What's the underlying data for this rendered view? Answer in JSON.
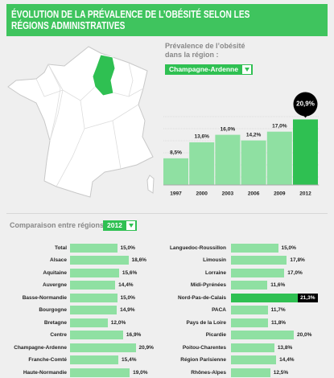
{
  "title": "ÉVOLUTION DE LA PRÉVALENCE DE L’OBÉSITÉ SELON LES RÉGIONS ADMINISTRATIVES",
  "chart_data": [
    {
      "type": "bar",
      "subtitle": "Prévalence de l’obésité dans la région :",
      "selector": "Champagne-Ardenne",
      "categories": [
        "1997",
        "2000",
        "2003",
        "2006",
        "2009",
        "2012"
      ],
      "values": [
        8.5,
        13.6,
        16.0,
        14.2,
        17.0,
        20.9
      ],
      "value_labels": [
        "8,5%",
        "13,6%",
        "16,0%",
        "14,2%",
        "17,0%",
        "20,9%"
      ],
      "highlight_color": "#2fc052",
      "colors": [
        "#8fe0a2",
        "#8fe0a2",
        "#8fe0a2",
        "#8fe0a2",
        "#8fe0a2",
        "#2fc052"
      ]
    },
    {
      "type": "hbar",
      "title": "Comparaison entre régions :",
      "selector": "2012",
      "categories": [
        "Total",
        "Alsace",
        "Aquitaine",
        "Auvergne",
        "Basse-Normandie",
        "Bourgogne",
        "Bretagne",
        "Centre",
        "Champagne-Ardenne",
        "Franche-Comté",
        "Haute-Normandie",
        "Languedoc-Roussillon",
        "Limousin",
        "Lorraine",
        "Midi-Pyrénées",
        "Nord-Pas-de-Calais",
        "PACA",
        "Pays de la Loire",
        "Picardie",
        "Poitou-Charentes",
        "Région Parisienne",
        "Rhônes-Alpes"
      ],
      "values": [
        15.0,
        18.6,
        15.6,
        14.4,
        15.0,
        14.9,
        12.0,
        16.9,
        20.9,
        15.4,
        19.0,
        15.0,
        17.8,
        17.0,
        11.6,
        21.3,
        11.7,
        11.8,
        20.0,
        13.8,
        14.4,
        12.5
      ],
      "value_labels": [
        "15,0%",
        "18,6%",
        "15,6%",
        "14,4%",
        "15,0%",
        "14,9%",
        "12,0%",
        "16,9%",
        "20,9%",
        "15,4%",
        "19,0%",
        "15,0%",
        "17,8%",
        "17,0%",
        "11,6%",
        "21,3%",
        "11,7%",
        "11,8%",
        "20,0%",
        "13,8%",
        "14,4%",
        "12,5%"
      ],
      "highlight_color": "#2fc052",
      "colors": [
        "#8fe0a2",
        "#8fe0a2",
        "#8fe0a2",
        "#8fe0a2",
        "#8fe0a2",
        "#8fe0a2",
        "#8fe0a2",
        "#8fe0a2",
        "#8fe0a2",
        "#8fe0a2",
        "#8fe0a2",
        "#8fe0a2",
        "#8fe0a2",
        "#8fe0a2",
        "#8fe0a2",
        "#2fc052",
        "#8fe0a2",
        "#8fe0a2",
        "#8fe0a2",
        "#8fe0a2",
        "#8fe0a2",
        "#8fe0a2"
      ]
    }
  ]
}
